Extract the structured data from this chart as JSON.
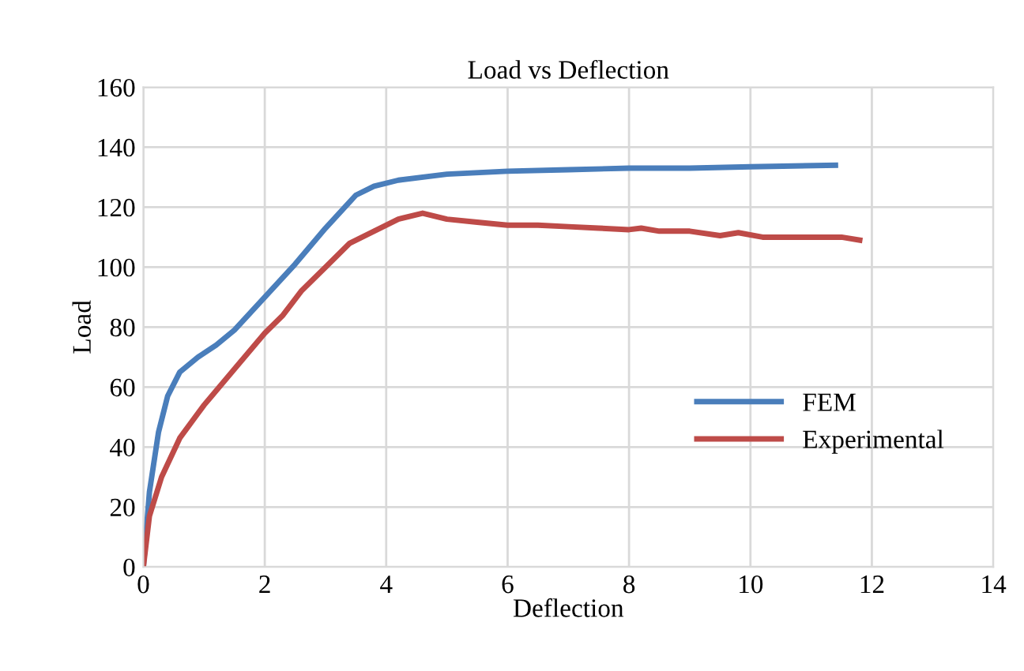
{
  "chart_data": {
    "type": "line",
    "title": "Load vs Deflection",
    "xlabel": "Deflection",
    "ylabel": "Load",
    "xlim": [
      0,
      14
    ],
    "xticks": [
      0,
      2,
      4,
      6,
      8,
      10,
      12,
      14
    ],
    "ylim": [
      0,
      160
    ],
    "yticks": [
      0,
      20,
      40,
      60,
      80,
      100,
      120,
      140,
      160
    ],
    "grid": true,
    "legend": "center right",
    "marker": "none",
    "line_style": "solid",
    "series": [
      {
        "name": "FEM",
        "color": "#4a7ebb",
        "x": [
          0,
          0.1,
          0.25,
          0.4,
          0.6,
          0.9,
          1.2,
          1.5,
          2,
          2.5,
          3,
          3.5,
          3.8,
          4.2,
          5,
          6,
          7,
          8,
          9,
          10,
          11.4
        ],
        "values": [
          0,
          25,
          45,
          57,
          65,
          70,
          74,
          79,
          90,
          101,
          113,
          124,
          127,
          129,
          131,
          132,
          132.5,
          133,
          133,
          133.5,
          134
        ]
      },
      {
        "name": "Experimental",
        "color": "#be4b48",
        "x": [
          0,
          0.1,
          0.3,
          0.6,
          1,
          1.5,
          2,
          2.3,
          2.6,
          3,
          3.4,
          3.8,
          4.2,
          4.6,
          5,
          5.5,
          6,
          6.5,
          7,
          7.5,
          8,
          8.2,
          8.5,
          9,
          9.5,
          9.8,
          10.2,
          11,
          11.5,
          11.8
        ],
        "values": [
          0,
          17,
          30,
          43,
          54,
          66,
          78,
          84,
          92,
          100,
          108,
          112,
          116,
          118,
          116,
          115,
          114,
          114,
          113.5,
          113,
          112.5,
          113,
          112,
          112,
          110.5,
          111.5,
          110,
          110,
          110,
          109
        ]
      }
    ]
  }
}
